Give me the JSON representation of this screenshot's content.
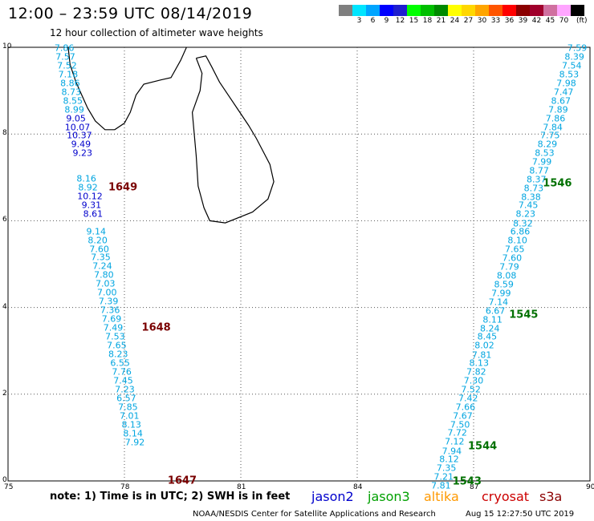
{
  "title": "12:00 – 23:59 UTC 08/14/2019",
  "subtitle": "12 hour collection of altimeter wave heights",
  "legend": {
    "colors": [
      "#7f7f7f",
      "#00e5ff",
      "#00a5ff",
      "#0000ff",
      "#1f1fcf",
      "#00ff00",
      "#00bf00",
      "#008a00",
      "#ffff00",
      "#ffd700",
      "#ffa500",
      "#ff5500",
      "#ff0000",
      "#8b0000",
      "#a0002c",
      "#d070a0",
      "#ffa5ff",
      "#000000"
    ],
    "labels": [
      "",
      "3",
      "6",
      "9",
      "12",
      "15",
      "18",
      "21",
      "24",
      "27",
      "30",
      "33",
      "36",
      "39",
      "42",
      "45",
      "70"
    ],
    "unit": "(ft)"
  },
  "map_extent": {
    "lon": [
      75,
      90
    ],
    "lat": [
      0,
      10
    ]
  },
  "axes": {
    "x_ticks": [
      "75",
      "78",
      "81",
      "84",
      "87",
      "90"
    ],
    "y_ticks": [
      "10",
      "8",
      "6",
      "4",
      "2",
      "0"
    ]
  },
  "tracks": [
    {
      "satellite": "cryosat",
      "color_text": "#00a5e0",
      "observations": [
        {
          "v": "7.86",
          "lon": 76.45,
          "lat": 9.98
        },
        {
          "v": "7.57",
          "lon": 76.48,
          "lat": 9.77
        },
        {
          "v": "7.52",
          "lon": 76.52,
          "lat": 9.57
        },
        {
          "v": "7.18",
          "lon": 76.55,
          "lat": 9.37
        },
        {
          "v": "8.86",
          "lon": 76.6,
          "lat": 9.16
        },
        {
          "v": "8.73",
          "lon": 76.63,
          "lat": 8.96
        },
        {
          "v": "8.55",
          "lon": 76.67,
          "lat": 8.76
        },
        {
          "v": "8.99",
          "lon": 76.71,
          "lat": 8.56
        },
        {
          "v": "8.16",
          "lon": 77.02,
          "lat": 6.96
        },
        {
          "v": "8.92",
          "lon": 77.06,
          "lat": 6.76
        },
        {
          "v": "9.14",
          "lon": 77.27,
          "lat": 5.75
        },
        {
          "v": "8.20",
          "lon": 77.31,
          "lat": 5.55
        },
        {
          "v": "7.60",
          "lon": 77.35,
          "lat": 5.35
        },
        {
          "v": "7.35",
          "lon": 77.39,
          "lat": 5.15
        },
        {
          "v": "7.24",
          "lon": 77.43,
          "lat": 4.95
        },
        {
          "v": "7.80",
          "lon": 77.47,
          "lat": 4.75
        },
        {
          "v": "7.03",
          "lon": 77.51,
          "lat": 4.54
        },
        {
          "v": "7.00",
          "lon": 77.55,
          "lat": 4.34
        },
        {
          "v": "7.39",
          "lon": 77.59,
          "lat": 4.14
        },
        {
          "v": "7.36",
          "lon": 77.63,
          "lat": 3.93
        },
        {
          "v": "7.69",
          "lon": 77.67,
          "lat": 3.73
        },
        {
          "v": "7.49",
          "lon": 77.71,
          "lat": 3.53
        },
        {
          "v": "7.53",
          "lon": 77.76,
          "lat": 3.32
        },
        {
          "v": "7.65",
          "lon": 77.8,
          "lat": 3.12
        },
        {
          "v": "8.23",
          "lon": 77.84,
          "lat": 2.92
        },
        {
          "v": "6.55",
          "lon": 77.89,
          "lat": 2.72
        },
        {
          "v": "7.76",
          "lon": 77.93,
          "lat": 2.51
        },
        {
          "v": "7.45",
          "lon": 77.97,
          "lat": 2.31
        },
        {
          "v": "7.23",
          "lon": 78.01,
          "lat": 2.11
        },
        {
          "v": "6.57",
          "lon": 78.05,
          "lat": 1.9
        },
        {
          "v": "7.85",
          "lon": 78.09,
          "lat": 1.7
        },
        {
          "v": "7.01",
          "lon": 78.13,
          "lat": 1.49
        },
        {
          "v": "8.13",
          "lon": 78.18,
          "lat": 1.29
        },
        {
          "v": "8.14",
          "lon": 78.22,
          "lat": 1.09
        },
        {
          "v": "7.92",
          "lon": 78.27,
          "lat": 0.89
        }
      ]
    },
    {
      "satellite": "jason2",
      "color_text": "#0000cc",
      "observations": [
        {
          "v": "9.05",
          "lon": 76.75,
          "lat": 8.36
        },
        {
          "v": "10.07",
          "lon": 76.79,
          "lat": 8.16
        },
        {
          "v": "10.37",
          "lon": 76.84,
          "lat": 7.96
        },
        {
          "v": "9.49",
          "lon": 76.88,
          "lat": 7.76
        },
        {
          "v": "9.23",
          "lon": 76.92,
          "lat": 7.56
        },
        {
          "v": "10.12",
          "lon": 77.11,
          "lat": 6.56
        },
        {
          "v": "9.31",
          "lon": 77.15,
          "lat": 6.36
        },
        {
          "v": "8.61",
          "lon": 77.19,
          "lat": 6.16
        }
      ]
    },
    {
      "satellite": "cryosat",
      "color_text": "#00a5e0",
      "observations": [
        {
          "v": "7.59",
          "lon": 89.67,
          "lat": 9.98
        },
        {
          "v": "8.39",
          "lon": 89.6,
          "lat": 9.78
        },
        {
          "v": "7.54",
          "lon": 89.53,
          "lat": 9.57
        },
        {
          "v": "8.53",
          "lon": 89.46,
          "lat": 9.37
        },
        {
          "v": "7.98",
          "lon": 89.39,
          "lat": 9.17
        },
        {
          "v": "7.47",
          "lon": 89.32,
          "lat": 8.97
        },
        {
          "v": "8.67",
          "lon": 89.25,
          "lat": 8.76
        },
        {
          "v": "7.89",
          "lon": 89.18,
          "lat": 8.56
        },
        {
          "v": "7.86",
          "lon": 89.11,
          "lat": 8.36
        },
        {
          "v": "7.84",
          "lon": 89.04,
          "lat": 8.16
        },
        {
          "v": "7.75",
          "lon": 88.97,
          "lat": 7.96
        },
        {
          "v": "8.29",
          "lon": 88.9,
          "lat": 7.76
        },
        {
          "v": "8.53",
          "lon": 88.83,
          "lat": 7.56
        },
        {
          "v": "7.99",
          "lon": 88.76,
          "lat": 7.36
        },
        {
          "v": "8.77",
          "lon": 88.69,
          "lat": 7.15
        },
        {
          "v": "8.37",
          "lon": 88.62,
          "lat": 6.95
        },
        {
          "v": "8.73",
          "lon": 88.55,
          "lat": 6.75
        },
        {
          "v": "8.38",
          "lon": 88.48,
          "lat": 6.55
        },
        {
          "v": "7.45",
          "lon": 88.41,
          "lat": 6.35
        },
        {
          "v": "8.23",
          "lon": 88.34,
          "lat": 6.15
        },
        {
          "v": "8.32",
          "lon": 88.27,
          "lat": 5.94
        },
        {
          "v": "6.86",
          "lon": 88.2,
          "lat": 5.74
        },
        {
          "v": "8.10",
          "lon": 88.13,
          "lat": 5.54
        },
        {
          "v": "7.65",
          "lon": 88.06,
          "lat": 5.34
        },
        {
          "v": "7.60",
          "lon": 87.99,
          "lat": 5.14
        },
        {
          "v": "7.79",
          "lon": 87.92,
          "lat": 4.93
        },
        {
          "v": "8.08",
          "lon": 87.85,
          "lat": 4.73
        },
        {
          "v": "8.59",
          "lon": 87.78,
          "lat": 4.53
        },
        {
          "v": "7.99",
          "lon": 87.71,
          "lat": 4.33
        },
        {
          "v": "7.14",
          "lon": 87.64,
          "lat": 4.13
        },
        {
          "v": "6.67",
          "lon": 87.56,
          "lat": 3.92
        },
        {
          "v": "8.11",
          "lon": 87.49,
          "lat": 3.72
        },
        {
          "v": "8.24",
          "lon": 87.42,
          "lat": 3.52
        },
        {
          "v": "8.45",
          "lon": 87.35,
          "lat": 3.32
        },
        {
          "v": "8.02",
          "lon": 87.28,
          "lat": 3.12
        },
        {
          "v": "7.81",
          "lon": 87.21,
          "lat": 2.91
        },
        {
          "v": "8.13",
          "lon": 87.14,
          "lat": 2.71
        },
        {
          "v": "7.82",
          "lon": 87.07,
          "lat": 2.51
        },
        {
          "v": "7.30",
          "lon": 87.0,
          "lat": 2.31
        },
        {
          "v": "7.52",
          "lon": 86.93,
          "lat": 2.11
        },
        {
          "v": "7.42",
          "lon": 86.86,
          "lat": 1.91
        },
        {
          "v": "7.66",
          "lon": 86.79,
          "lat": 1.7
        },
        {
          "v": "7.67",
          "lon": 86.72,
          "lat": 1.5
        },
        {
          "v": "7.50",
          "lon": 86.65,
          "lat": 1.3
        },
        {
          "v": "7.72",
          "lon": 86.58,
          "lat": 1.1
        },
        {
          "v": "7.12",
          "lon": 86.51,
          "lat": 0.9
        },
        {
          "v": "7.94",
          "lon": 86.44,
          "lat": 0.69
        },
        {
          "v": "8.12",
          "lon": 86.37,
          "lat": 0.49
        },
        {
          "v": "7.35",
          "lon": 86.3,
          "lat": 0.29
        },
        {
          "v": "7.21",
          "lon": 86.23,
          "lat": 0.09
        },
        {
          "v": "7.81",
          "lon": 86.16,
          "lat": -0.11
        }
      ]
    }
  ],
  "time_labels": [
    {
      "text": "1649",
      "lon": 77.96,
      "lat": 6.76,
      "color": "#7a0000"
    },
    {
      "text": "1648",
      "lon": 78.82,
      "lat": 3.53,
      "color": "#7a0000"
    },
    {
      "text": "1647",
      "lon": 79.49,
      "lat": 0.0,
      "color": "#7a0000"
    },
    {
      "text": "1546",
      "lon": 89.16,
      "lat": 6.86,
      "color": "#007000"
    },
    {
      "text": "1545",
      "lon": 88.29,
      "lat": 3.82,
      "color": "#007000"
    },
    {
      "text": "1544",
      "lon": 87.23,
      "lat": 0.79,
      "color": "#007000"
    },
    {
      "text": "1543",
      "lon": 86.83,
      "lat": -0.02,
      "color": "#007000"
    }
  ],
  "note": "note:  1) Time is in UTC;  2) SWH is in feet",
  "satellites": [
    {
      "name": "jason2",
      "color": "#0000cc"
    },
    {
      "name": "jason3",
      "color": "#00a000"
    },
    {
      "name": "altika",
      "color": "#ff9900"
    },
    {
      "name": "cryosat",
      "color": "#cc0000"
    },
    {
      "name": "s3a",
      "color": "#8b0000"
    }
  ],
  "footer": "NOAA/NESDIS Center for Satellite Applications and Research",
  "footer_timestamp": "Aug 15 12:27:50 UTC 2019"
}
